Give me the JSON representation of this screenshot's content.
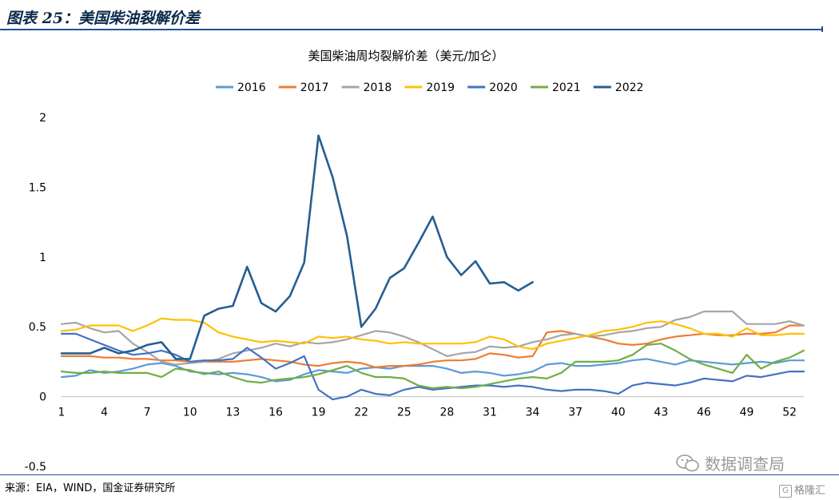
{
  "header": {
    "title": "图表 25：美国柴油裂解价差"
  },
  "footer": {
    "source": "来源：EIA，WIND，国金证券研究所"
  },
  "watermark": {
    "text": "数据调查局",
    "icon": "wechat-icon"
  },
  "brand": {
    "text": "格隆汇",
    "icon": "brand-logo-icon",
    "badge_char": "G"
  },
  "chart_data": {
    "type": "line",
    "title": "美国柴油周均裂解价差（美元/加仑）",
    "xlabel": "",
    "ylabel": "",
    "xlim": [
      1,
      53
    ],
    "ylim": [
      -0.5,
      2
    ],
    "y_ticks": [
      "-0.5",
      "0",
      "0.5",
      "1",
      "1.5",
      "2"
    ],
    "y_tick_values": [
      -0.5,
      0,
      0.5,
      1,
      1.5,
      2
    ],
    "x_ticks": [
      "1",
      "4",
      "7",
      "10",
      "13",
      "16",
      "19",
      "22",
      "25",
      "28",
      "31",
      "34",
      "37",
      "40",
      "43",
      "46",
      "49",
      "52"
    ],
    "x_tick_values": [
      1,
      4,
      7,
      10,
      13,
      16,
      19,
      22,
      25,
      28,
      31,
      34,
      37,
      40,
      43,
      46,
      49,
      52
    ],
    "grid": false,
    "legend_position": "top",
    "series": [
      {
        "name": "2016",
        "color": "#5b9bd5",
        "values": [
          0.14,
          0.15,
          0.19,
          0.17,
          0.18,
          0.2,
          0.23,
          0.24,
          0.22,
          0.18,
          0.17,
          0.16,
          0.17,
          0.16,
          0.14,
          0.11,
          0.12,
          0.16,
          0.19,
          0.18,
          0.17,
          0.2,
          0.21,
          0.2,
          0.22,
          0.22,
          0.22,
          0.2,
          0.17,
          0.18,
          0.17,
          0.15,
          0.16,
          0.18,
          0.23,
          0.24,
          0.22,
          0.22,
          0.23,
          0.24,
          0.26,
          0.27,
          0.25,
          0.23,
          0.26,
          0.25,
          0.24,
          0.23,
          0.24,
          0.25,
          0.24,
          0.26,
          0.26
        ]
      },
      {
        "name": "2017",
        "color": "#ed7d31",
        "values": [
          0.29,
          0.29,
          0.29,
          0.28,
          0.28,
          0.27,
          0.27,
          0.26,
          0.26,
          0.25,
          0.25,
          0.25,
          0.25,
          0.26,
          0.27,
          0.26,
          0.25,
          0.23,
          0.22,
          0.24,
          0.25,
          0.24,
          0.21,
          0.22,
          0.22,
          0.23,
          0.25,
          0.26,
          0.26,
          0.27,
          0.31,
          0.3,
          0.28,
          0.29,
          0.46,
          0.47,
          0.45,
          0.43,
          0.41,
          0.38,
          0.37,
          0.38,
          0.41,
          0.43,
          0.44,
          0.45,
          0.44,
          0.44,
          0.45,
          0.45,
          0.46,
          0.51,
          0.51
        ]
      },
      {
        "name": "2018",
        "color": "#a5a5a5",
        "values": [
          0.52,
          0.53,
          0.49,
          0.46,
          0.47,
          0.38,
          0.32,
          0.25,
          0.23,
          0.24,
          0.25,
          0.27,
          0.31,
          0.33,
          0.35,
          0.38,
          0.36,
          0.39,
          0.38,
          0.39,
          0.41,
          0.44,
          0.47,
          0.46,
          0.43,
          0.39,
          0.34,
          0.29,
          0.31,
          0.32,
          0.36,
          0.35,
          0.36,
          0.39,
          0.41,
          0.44,
          0.45,
          0.43,
          0.44,
          0.46,
          0.47,
          0.49,
          0.5,
          0.55,
          0.57,
          0.61,
          0.61,
          0.61,
          0.52,
          0.52,
          0.52,
          0.54,
          0.51
        ]
      },
      {
        "name": "2019",
        "color": "#ffc000",
        "values": [
          0.47,
          0.48,
          0.51,
          0.51,
          0.51,
          0.47,
          0.51,
          0.56,
          0.55,
          0.55,
          0.53,
          0.46,
          0.43,
          0.41,
          0.39,
          0.4,
          0.39,
          0.38,
          0.43,
          0.42,
          0.43,
          0.41,
          0.4,
          0.38,
          0.39,
          0.38,
          0.38,
          0.38,
          0.38,
          0.39,
          0.43,
          0.41,
          0.36,
          0.34,
          0.38,
          0.4,
          0.42,
          0.44,
          0.47,
          0.48,
          0.5,
          0.53,
          0.54,
          0.52,
          0.49,
          0.45,
          0.45,
          0.43,
          0.49,
          0.44,
          0.44,
          0.45,
          0.45
        ]
      },
      {
        "name": "2020",
        "color": "#4472c4",
        "values": [
          0.45,
          0.45,
          0.41,
          0.37,
          0.33,
          0.3,
          0.31,
          0.33,
          0.3,
          0.25,
          0.26,
          0.26,
          0.27,
          0.35,
          0.28,
          0.2,
          0.24,
          0.29,
          0.05,
          -0.02,
          0.0,
          0.05,
          0.02,
          0.01,
          0.05,
          0.07,
          0.05,
          0.06,
          0.07,
          0.08,
          0.08,
          0.07,
          0.08,
          0.07,
          0.05,
          0.04,
          0.05,
          0.05,
          0.04,
          0.02,
          0.08,
          0.1,
          0.09,
          0.08,
          0.1,
          0.13,
          0.12,
          0.11,
          0.15,
          0.14,
          0.16,
          0.18,
          0.18
        ]
      },
      {
        "name": "2021",
        "color": "#70ad47",
        "values": [
          0.18,
          0.17,
          0.17,
          0.18,
          0.17,
          0.17,
          0.17,
          0.14,
          0.2,
          0.19,
          0.16,
          0.18,
          0.14,
          0.11,
          0.1,
          0.12,
          0.13,
          0.14,
          0.16,
          0.19,
          0.22,
          0.17,
          0.14,
          0.14,
          0.13,
          0.08,
          0.06,
          0.07,
          0.06,
          0.07,
          0.09,
          0.11,
          0.13,
          0.14,
          0.13,
          0.17,
          0.25,
          0.25,
          0.25,
          0.26,
          0.3,
          0.37,
          0.38,
          0.33,
          0.27,
          0.23,
          0.2,
          0.17,
          0.3,
          0.2,
          0.25,
          0.28,
          0.33
        ]
      },
      {
        "name": "2022",
        "color": "#255e91",
        "values": [
          0.31,
          0.31,
          0.31,
          0.35,
          0.31,
          0.33,
          0.37,
          0.39,
          0.27,
          0.27,
          0.58,
          0.63,
          0.65,
          0.93,
          0.67,
          0.61,
          0.72,
          0.96,
          1.87,
          1.57,
          1.15,
          0.5,
          0.63,
          0.85,
          0.92,
          1.1,
          1.29,
          1.0,
          0.87,
          0.97,
          0.81,
          0.82,
          0.76,
          0.82
        ]
      }
    ]
  }
}
